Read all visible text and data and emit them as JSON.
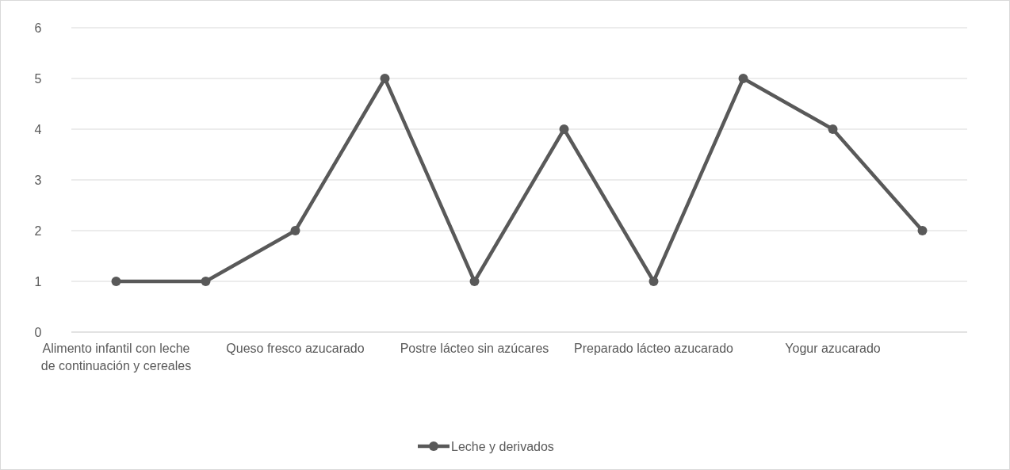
{
  "chart_data": {
    "type": "line",
    "categories": [
      "Alimento infantil con leche de continuación y cereales",
      null,
      "Queso fresco azucarado",
      null,
      "Postre lácteo sin azúcares",
      null,
      "Preparado lácteo azucarado",
      null,
      "Yogur azucarado",
      null
    ],
    "series": [
      {
        "name": "Leche y derivados",
        "color": "#595959",
        "values": [
          1,
          1,
          2,
          5,
          1,
          4,
          1,
          5,
          4,
          2
        ]
      }
    ],
    "ylim": [
      0,
      6
    ],
    "yticks": [
      0,
      1,
      2,
      3,
      4,
      5,
      6
    ],
    "grid": "y",
    "legend": "bottom",
    "marker": "circle",
    "line_style": "solid"
  }
}
